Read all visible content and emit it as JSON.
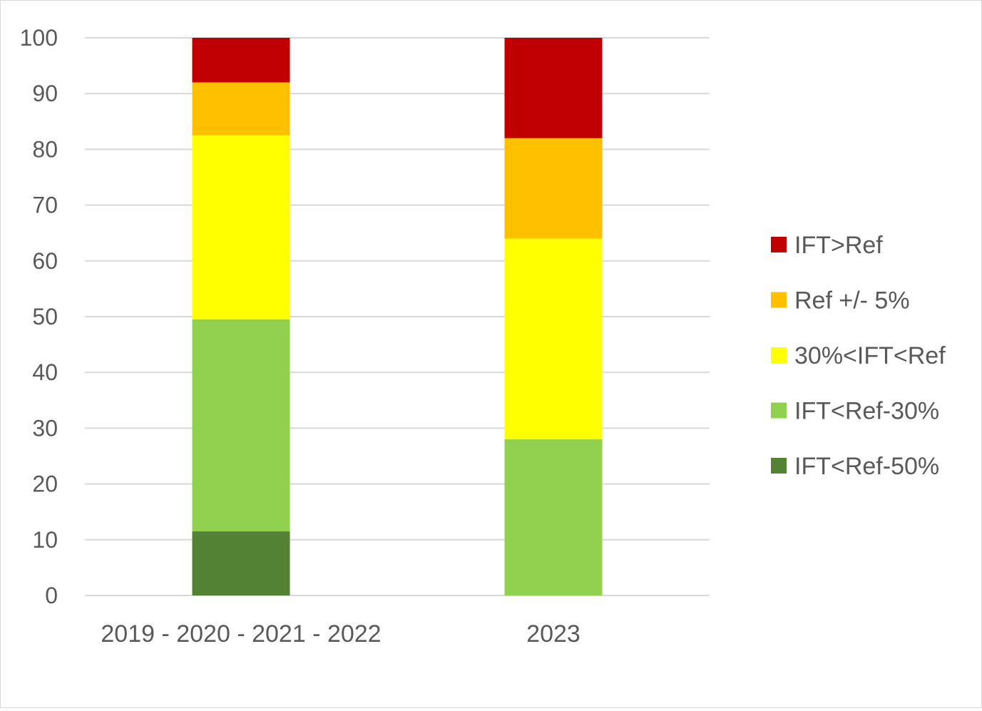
{
  "chart_data": {
    "type": "bar",
    "stacked": true,
    "title": "",
    "xlabel": "",
    "ylabel": "",
    "categories": [
      "2019 - 2020 - 2021 - 2022",
      "2023"
    ],
    "ylim": [
      0,
      100
    ],
    "yticks": [
      0,
      10,
      20,
      30,
      40,
      50,
      60,
      70,
      80,
      90,
      100
    ],
    "grid": true,
    "legend_position": "right",
    "series": [
      {
        "name": "IFT<Ref-50%",
        "color": "#548235",
        "values": [
          11.5,
          0
        ]
      },
      {
        "name": "IFT<Ref-30%",
        "color": "#92d050",
        "values": [
          38,
          28
        ]
      },
      {
        "name": "30%<IFT<Ref",
        "color": "#ffff00",
        "values": [
          33,
          36
        ]
      },
      {
        "name": "Ref +/- 5%",
        "color": "#ffc000",
        "values": [
          9.5,
          18
        ]
      },
      {
        "name": "IFT>Ref",
        "color": "#c00000",
        "values": [
          8,
          18
        ]
      }
    ],
    "legend_order": [
      "IFT>Ref",
      "Ref +/- 5%",
      "30%<IFT<Ref",
      "IFT<Ref-30%",
      "IFT<Ref-50%"
    ]
  }
}
